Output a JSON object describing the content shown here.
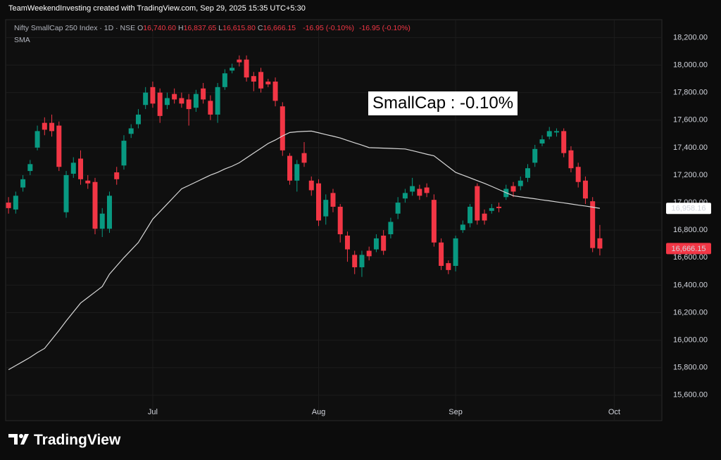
{
  "header": {
    "attribution": "TeamWeekendInvesting created with TradingView.com, Sep 29, 2025 15:35 UTC+5:30"
  },
  "logo": {
    "text": "TradingView"
  },
  "chart_data": {
    "type": "candlestick",
    "legend": {
      "ohlc": [
        {
          "key": "O",
          "value": "16,740.60"
        },
        {
          "key": "H",
          "value": "16,837.65"
        },
        {
          "key": "L",
          "value": "16,615.80"
        },
        {
          "key": "C",
          "value": "16,666.15"
        }
      ],
      "changes": [
        "-16.95 (-0.10%)",
        "-16.95 (-0.10%)"
      ]
    },
    "annotations": [
      {
        "text": "SmallCap : -0.10%"
      }
    ],
    "x": [
      0,
      1,
      2,
      3,
      4,
      5,
      6,
      7,
      8,
      9,
      10,
      11,
      12,
      13,
      14,
      15,
      16,
      17,
      18,
      19,
      20,
      21,
      22,
      23,
      24,
      25,
      26,
      27,
      28,
      29,
      30,
      31,
      32,
      33,
      34,
      35,
      36,
      37,
      38,
      39,
      40,
      41,
      42,
      43,
      44,
      45,
      46,
      47,
      48,
      49,
      50,
      51,
      52,
      53,
      54,
      55,
      56,
      57,
      58,
      59,
      60,
      61,
      62,
      63,
      64,
      65,
      66,
      67,
      68,
      69,
      70,
      71,
      72,
      73,
      74,
      75,
      76,
      77,
      78,
      79,
      80,
      81,
      82
    ],
    "xlim": [
      -0.4,
      90.6
    ],
    "xticks": [
      {
        "value": 20,
        "label": "Jul"
      },
      {
        "value": 43,
        "label": "Aug"
      },
      {
        "value": 62,
        "label": "Sep"
      },
      {
        "value": 84,
        "label": "Oct"
      }
    ],
    "ylim": [
      15415,
      18330
    ],
    "yticks": [
      {
        "value": 15600,
        "label": "15,600.00"
      },
      {
        "value": 15800,
        "label": "15,800.00"
      },
      {
        "value": 16000,
        "label": "16,000.00"
      },
      {
        "value": 16200,
        "label": "16,200.00"
      },
      {
        "value": 16400,
        "label": "16,400.00"
      },
      {
        "value": 16600,
        "label": "16,600.00"
      },
      {
        "value": 16800,
        "label": "16,800.00"
      },
      {
        "value": 17000,
        "label": "17,000.00"
      },
      {
        "value": 17200,
        "label": "17,200.00"
      },
      {
        "value": 17400,
        "label": "17,400.00"
      },
      {
        "value": 17600,
        "label": "17,600.00"
      },
      {
        "value": 17800,
        "label": "17,800.00"
      },
      {
        "value": 18000,
        "label": "18,000.00"
      },
      {
        "value": 18200,
        "label": "18,200.00"
      }
    ],
    "grid": true,
    "up_color": "#089981",
    "down_color": "#f23645",
    "series": [
      {
        "name": "Nifty SmallCap 250 Index · 1D · NSE",
        "open": [
          17000,
          16950,
          17110,
          17230,
          17400,
          17580,
          17580,
          17560,
          16930,
          17210,
          17320,
          17160,
          17150,
          16810,
          16810,
          17220,
          17270,
          17500,
          17570,
          17710,
          17840,
          17800,
          17710,
          17790,
          17760,
          17750,
          17690,
          17830,
          17740,
          17640,
          17840,
          17960,
          18040,
          18040,
          17920,
          17950,
          17880,
          17880,
          17700,
          17340,
          17160,
          17360,
          17160,
          17140,
          16900,
          17070,
          16970,
          16760,
          16620,
          16530,
          16650,
          16660,
          16760,
          16770,
          16920,
          17030,
          17080,
          17100,
          17110,
          17020,
          16710,
          16560,
          16540,
          16800,
          16850,
          17120,
          16920,
          16940,
          16970,
          17040,
          17120,
          17120,
          17180,
          17290,
          17430,
          17480,
          17510,
          17520,
          17380,
          17260,
          17160,
          17010,
          16740.6
        ],
        "high": [
          17040,
          17080,
          17200,
          17310,
          17560,
          17620,
          17640,
          17590,
          17230,
          17330,
          17380,
          17200,
          17180,
          16960,
          17080,
          17260,
          17490,
          17570,
          17680,
          17840,
          17880,
          17830,
          17800,
          17830,
          17800,
          17790,
          17820,
          17870,
          17780,
          17870,
          17970,
          18010,
          18070,
          18070,
          17950,
          17980,
          17900,
          17910,
          17730,
          17360,
          17310,
          17440,
          17190,
          17170,
          17060,
          17100,
          16990,
          16790,
          16650,
          16650,
          16680,
          16770,
          16800,
          16890,
          17040,
          17100,
          17180,
          17130,
          17140,
          17060,
          16740,
          16580,
          16760,
          16870,
          16990,
          17140,
          16950,
          16990,
          17000,
          17130,
          17150,
          17190,
          17280,
          17420,
          17490,
          17550,
          17540,
          17540,
          17410,
          17290,
          17190,
          17040,
          16837.65
        ],
        "low": [
          16920,
          16920,
          17080,
          17200,
          17380,
          17490,
          17480,
          17230,
          16890,
          17180,
          17130,
          17100,
          16770,
          16750,
          16780,
          17130,
          17240,
          17470,
          17540,
          17680,
          17690,
          17580,
          17680,
          17720,
          17690,
          17560,
          17660,
          17720,
          17600,
          17580,
          17820,
          17940,
          17990,
          17880,
          17810,
          17800,
          17840,
          17700,
          17340,
          17130,
          17080,
          17260,
          17050,
          16830,
          16840,
          16930,
          16710,
          16570,
          16480,
          16460,
          16580,
          16640,
          16620,
          16740,
          16880,
          17000,
          17050,
          17020,
          17040,
          16680,
          16510,
          16480,
          16500,
          16780,
          16820,
          16840,
          16840,
          16920,
          16930,
          17020,
          17040,
          17090,
          17150,
          17260,
          17410,
          17460,
          17480,
          17330,
          17220,
          17110,
          16990,
          16640,
          16615.8
        ],
        "close": [
          16960,
          17050,
          17170,
          17280,
          17520,
          17530,
          17520,
          17260,
          17200,
          17290,
          17170,
          17140,
          16810,
          16920,
          17050,
          17170,
          17450,
          17540,
          17640,
          17800,
          17720,
          17630,
          17760,
          17750,
          17720,
          17680,
          17790,
          17750,
          17640,
          17840,
          17940,
          17980,
          18020,
          17910,
          17880,
          17830,
          17860,
          17740,
          17380,
          17160,
          17280,
          17290,
          17090,
          16870,
          17020,
          16970,
          16770,
          16660,
          16530,
          16620,
          16610,
          16740,
          16650,
          16860,
          17000,
          17070,
          17120,
          17050,
          17070,
          16710,
          16540,
          16510,
          16740,
          16840,
          16970,
          16870,
          16870,
          16960,
          16960,
          17100,
          17080,
          17160,
          17250,
          17390,
          17460,
          17520,
          17520,
          17360,
          17250,
          17150,
          17030,
          16670,
          16666.15
        ]
      },
      {
        "name": "SMA",
        "type": "line",
        "color": "#d8d8d8",
        "values": [
          15785,
          15815,
          15845,
          15875,
          15910,
          15940,
          16005,
          16070,
          16140,
          16205,
          16270,
          16310,
          16350,
          16390,
          16480,
          16540,
          16600,
          16655,
          16710,
          16795,
          16880,
          16935,
          16990,
          17045,
          17100,
          17125,
          17150,
          17175,
          17200,
          17220,
          17245,
          17265,
          17290,
          17325,
          17360,
          17395,
          17430,
          17455,
          17485,
          17510,
          17515,
          17518,
          17520,
          17508,
          17495,
          17483,
          17470,
          17452,
          17435,
          17418,
          17400,
          17398,
          17396,
          17394,
          17392,
          17390,
          17378,
          17365,
          17352,
          17340,
          17300,
          17260,
          17220,
          17200,
          17180,
          17160,
          17140,
          17118,
          17095,
          17072,
          17050,
          17042,
          17035,
          17028,
          17020,
          17013,
          17005,
          16998,
          16990,
          16982,
          16975,
          16967,
          16958.16
        ]
      }
    ],
    "last_labels": [
      {
        "value": 16958.16,
        "label": "16,958.16",
        "style": "light"
      },
      {
        "value": 16666.15,
        "label": "16,666.15",
        "style": "down"
      }
    ]
  }
}
